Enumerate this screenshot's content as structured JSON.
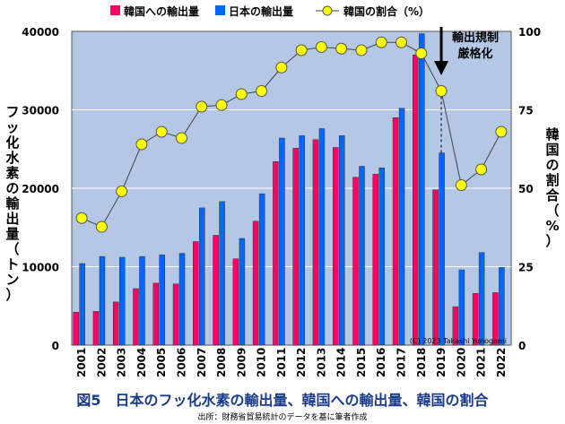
{
  "chart_data": {
    "type": "bar",
    "title": "図5　日本のフッ化水素の輸出量、韓国への輸出量、韓国の割合",
    "source": "出所：財務省貿易統計のデータを基に筆者作成",
    "copyright": "(C) 2023 Takashi Yunogami",
    "ylabel": "フッ化水素の輸出量（トン）",
    "y2label": "韓国の割合（%）",
    "ylim": [
      0,
      40000
    ],
    "y2lim": [
      0,
      100
    ],
    "yticks": [
      "0",
      "10000",
      "20000",
      "30000",
      "40000"
    ],
    "y2ticks": [
      "0",
      "25",
      "50",
      "75",
      "100"
    ],
    "grid": true,
    "legend_position": "top",
    "annotation": [
      "輸出規制",
      "厳格化"
    ],
    "annotation_year": "2019",
    "categories": [
      "2001",
      "2002",
      "2003",
      "2004",
      "2005",
      "2006",
      "2007",
      "2008",
      "2009",
      "2010",
      "2011",
      "2012",
      "2013",
      "2014",
      "2015",
      "2016",
      "2017",
      "2018",
      "2019",
      "2020",
      "2021",
      "2022"
    ],
    "series": [
      {
        "name": "韓国への輸出量",
        "type": "bar",
        "axis": "left",
        "color": "#ff0066",
        "values": [
          4200,
          4300,
          5500,
          7200,
          7900,
          7800,
          13200,
          14000,
          11000,
          15800,
          23400,
          25100,
          26200,
          25200,
          21400,
          21800,
          29000,
          37000,
          19800,
          4900,
          6600,
          6700
        ]
      },
      {
        "name": "日本の輸出量",
        "type": "bar",
        "axis": "left",
        "color": "#0066ff",
        "values": [
          10400,
          11300,
          11200,
          11300,
          11500,
          11700,
          17500,
          18300,
          13600,
          19300,
          26400,
          26700,
          27600,
          26700,
          22800,
          22600,
          30200,
          39700,
          24500,
          9600,
          11800,
          9900
        ]
      },
      {
        "name": "韓国の割合（%）",
        "type": "line",
        "axis": "right",
        "color": "#ffff00",
        "values": [
          40.5,
          37.7,
          49,
          64,
          68,
          66,
          76,
          76.5,
          80,
          81,
          88.5,
          94,
          95,
          94.5,
          94,
          96.5,
          96.5,
          93,
          81,
          51,
          56,
          68
        ]
      }
    ]
  }
}
